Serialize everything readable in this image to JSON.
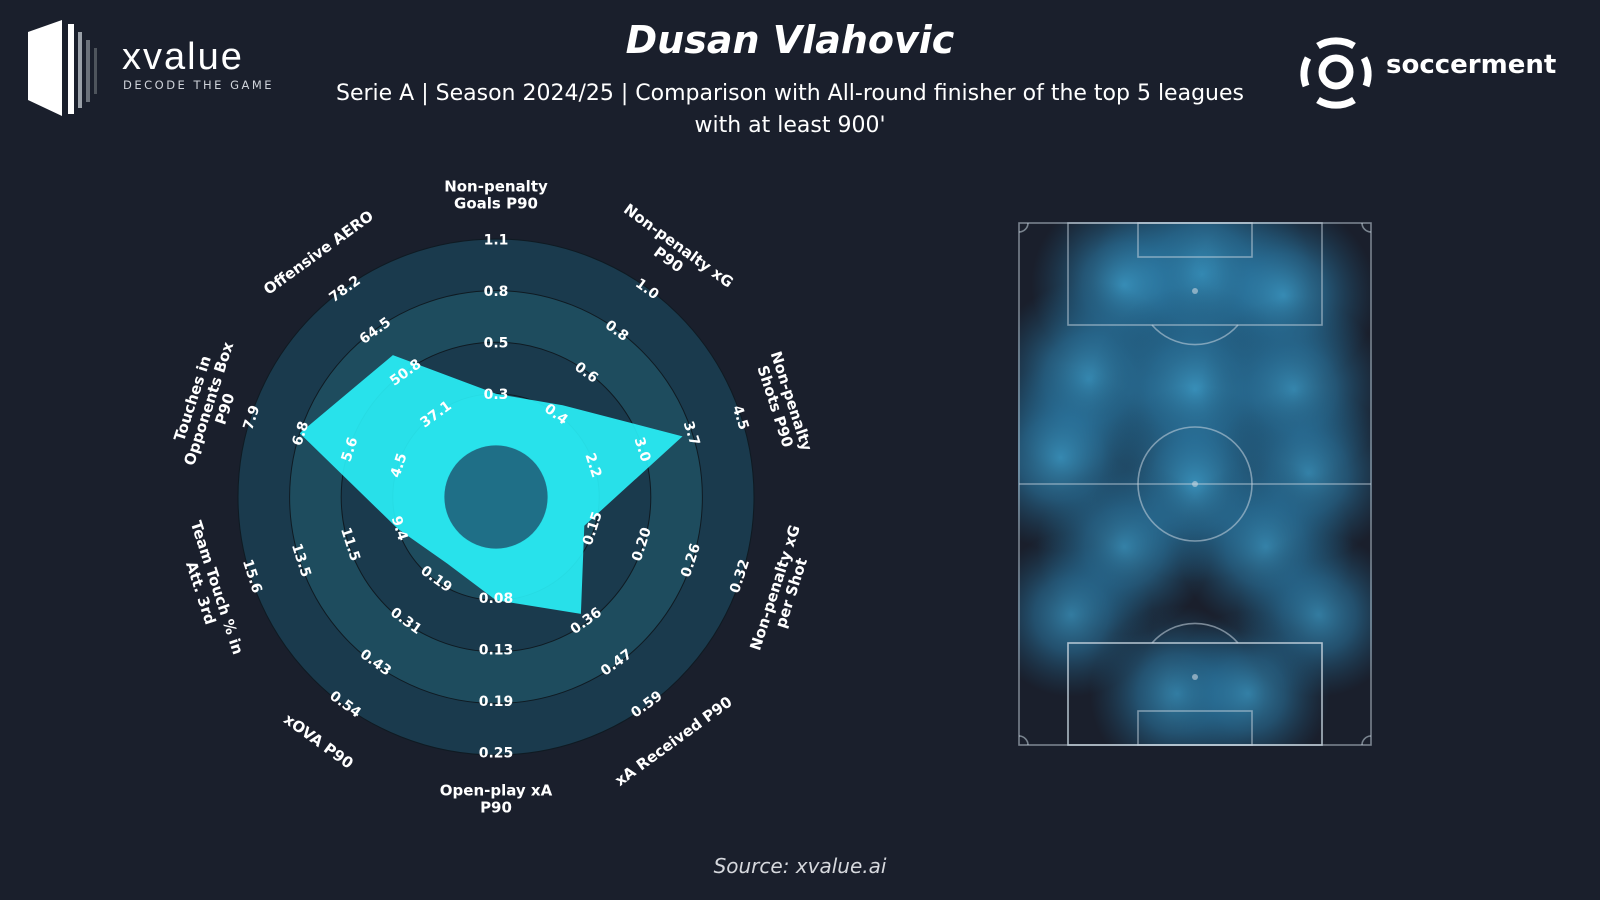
{
  "header": {
    "title": "Dusan Vlahovic",
    "subtitle_line1": "Serie A | Season 2024/25 | Comparison with All-round finisher of the top 5 leagues",
    "subtitle_line2": "with at least 900'"
  },
  "logos": {
    "left_brand": "xvalue",
    "left_tagline": "DECODE THE GAME",
    "right_brand": "soccerment"
  },
  "footer": {
    "source": "Source: xvalue.ai"
  },
  "colors": {
    "background": "#1a1f2c",
    "ring_dark": "#1a3a4d",
    "ring_mid": "#1e4c5e",
    "player_fill": "#2af7ff",
    "pitch_heat": "#2a7ba8"
  },
  "chart_data": [
    {
      "type": "radar",
      "title": "",
      "axes": [
        {
          "label": [
            "Non-penalty",
            "Goals P90"
          ],
          "ticks": [
            "0.3",
            "0.5",
            "0.8",
            "1.1"
          ]
        },
        {
          "label": [
            "Non-penalty xG",
            "P90"
          ],
          "ticks": [
            "0.4",
            "0.6",
            "0.8",
            "1.0"
          ]
        },
        {
          "label": [
            "Non-penalty",
            "Shots P90"
          ],
          "ticks": [
            "2.2",
            "3.0",
            "3.7",
            "4.5"
          ]
        },
        {
          "label": [
            "Non-penalty xG",
            "per Shot"
          ],
          "ticks": [
            "0.15",
            "0.20",
            "0.26",
            "0.32"
          ]
        },
        {
          "label": [
            "xA Received P90"
          ],
          "ticks": [
            "0.36",
            "0.47",
            "0.59"
          ]
        },
        {
          "label": [
            "Open-play xA",
            "P90"
          ],
          "ticks": [
            "0.08",
            "0.13",
            "0.19",
            "0.25"
          ]
        },
        {
          "label": [
            "xOVA P90"
          ],
          "ticks": [
            "0.19",
            "0.31",
            "0.43",
            "0.54"
          ]
        },
        {
          "label": [
            "Team Touch % in",
            "Att. 3rd"
          ],
          "ticks": [
            "9.4",
            "11.5",
            "13.5",
            "15.6"
          ]
        },
        {
          "label": [
            "Touches in",
            "Opponents Box",
            "P90"
          ],
          "ticks": [
            "4.5",
            "5.6",
            "6.8",
            "7.9"
          ]
        },
        {
          "label": [
            "Offensive AERO"
          ],
          "ticks": [
            "37.1",
            "50.8",
            "64.5",
            "78.2"
          ]
        }
      ],
      "inner_circle_fraction": 0.2,
      "ring_fractions": [
        0.2,
        0.4,
        0.6,
        0.8,
        1.0
      ],
      "player_values_fraction": [
        0.4,
        0.44,
        0.76,
        0.36,
        0.56,
        0.4,
        0.32,
        0.4,
        0.8,
        0.68
      ]
    },
    {
      "type": "heatmap",
      "title": "",
      "description_free": true,
      "pitch_orientation": "vertical",
      "hotspots": [
        {
          "x": 0.52,
          "y": 0.1,
          "intensity": 0.9
        },
        {
          "x": 0.3,
          "y": 0.12,
          "intensity": 0.6
        },
        {
          "x": 0.75,
          "y": 0.14,
          "intensity": 0.6
        },
        {
          "x": 0.2,
          "y": 0.3,
          "intensity": 0.7
        },
        {
          "x": 0.5,
          "y": 0.32,
          "intensity": 0.8
        },
        {
          "x": 0.78,
          "y": 0.32,
          "intensity": 0.6
        },
        {
          "x": 0.12,
          "y": 0.45,
          "intensity": 0.6
        },
        {
          "x": 0.5,
          "y": 0.5,
          "intensity": 0.7
        },
        {
          "x": 0.82,
          "y": 0.48,
          "intensity": 0.5
        },
        {
          "x": 0.3,
          "y": 0.62,
          "intensity": 0.5
        },
        {
          "x": 0.7,
          "y": 0.62,
          "intensity": 0.5
        },
        {
          "x": 0.15,
          "y": 0.75,
          "intensity": 0.4
        },
        {
          "x": 0.85,
          "y": 0.75,
          "intensity": 0.4
        },
        {
          "x": 0.45,
          "y": 0.9,
          "intensity": 0.5
        },
        {
          "x": 0.65,
          "y": 0.9,
          "intensity": 0.4
        }
      ]
    }
  ]
}
